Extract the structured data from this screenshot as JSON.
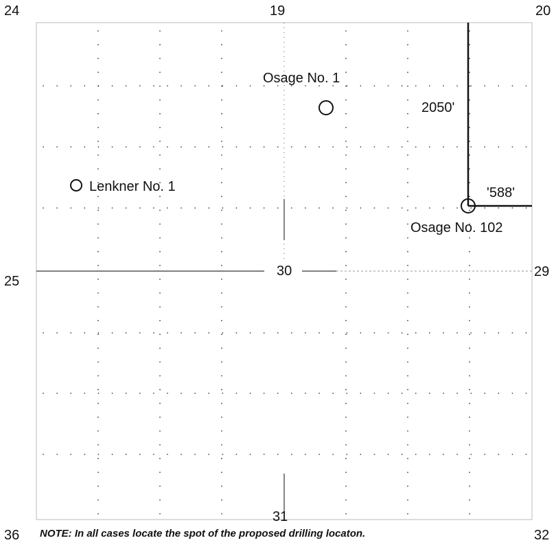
{
  "section_numbers": {
    "top_left": "24",
    "top_center": "19",
    "top_right": "20",
    "middle_left": "25",
    "center": "30",
    "middle_right": "29",
    "bottom_center": "31",
    "bottom_left": "36",
    "bottom_right": "32"
  },
  "wells": [
    {
      "name": "Osage No. 1",
      "symbol": "circle-icon"
    },
    {
      "name": "Lenkner No. 1",
      "symbol": "circle-icon"
    },
    {
      "name": "Osage No. 102",
      "symbol": "circle-icon"
    }
  ],
  "dimensions": {
    "vertical_distance": "2050'",
    "horizontal_distance": "'588'"
  },
  "note": "NOTE: In all cases locate the spot of the proposed drilling locaton."
}
